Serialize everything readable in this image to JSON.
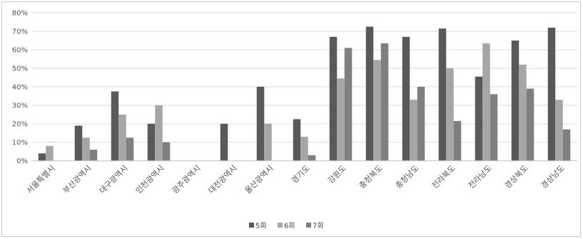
{
  "chart_data": {
    "type": "bar",
    "title": "",
    "xlabel": "",
    "ylabel": "",
    "ylim": [
      0,
      80
    ],
    "yticks": [
      "0%",
      "10%",
      "20%",
      "30%",
      "40%",
      "50%",
      "60%",
      "70%",
      "80%"
    ],
    "grid": true,
    "legend_position": "bottom",
    "categories": [
      "서울특별시",
      "부산광역시",
      "대구광역시",
      "인천광역시",
      "광주광역시",
      "대전광역시",
      "울산광역시",
      "경기도",
      "강원도",
      "충청북도",
      "충청남도",
      "전라북도",
      "전라남도",
      "경상북도",
      "경상남도"
    ],
    "series": [
      {
        "name": "5회",
        "color": "#595959",
        "values": [
          4,
          19,
          37.5,
          20,
          0,
          20,
          40,
          22.5,
          67,
          72.5,
          67,
          71.5,
          45.5,
          65,
          72
        ]
      },
      {
        "name": "6회",
        "color": "#a6a6a6",
        "values": [
          8,
          12.5,
          25,
          30,
          0,
          0,
          20,
          13,
          44.5,
          54.5,
          33,
          50,
          63.5,
          52,
          33
        ]
      },
      {
        "name": "7회",
        "color": "#7f7f7f",
        "values": [
          0,
          6,
          12.5,
          10,
          0,
          0,
          0,
          3,
          61,
          63.5,
          40,
          21.5,
          36,
          39,
          17
        ]
      }
    ]
  }
}
